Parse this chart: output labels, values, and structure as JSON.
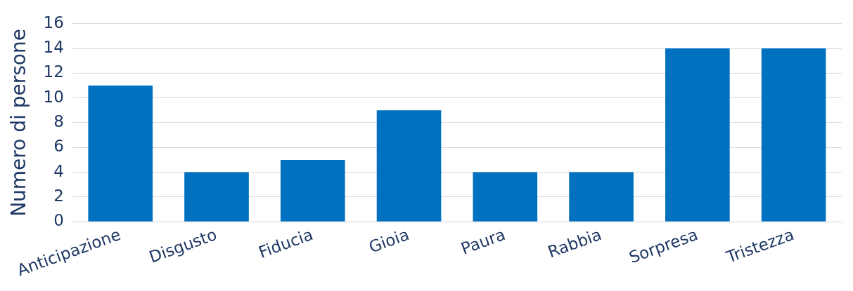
{
  "chart_data": {
    "type": "bar",
    "ylabel": "Numero di persone",
    "categories": [
      "Anticipazione",
      "Disgusto",
      "Fiducia",
      "Gioia",
      "Paura",
      "Rabbia",
      "Sorpresa",
      "Tristezza"
    ],
    "values": [
      11,
      4,
      5,
      9,
      4,
      4,
      14,
      14
    ],
    "color": "#0070c0",
    "ylim": [
      0,
      16
    ],
    "yticks": [
      0,
      2,
      4,
      6,
      8,
      10,
      12,
      14,
      16
    ],
    "grid": "y",
    "legend": false
  }
}
